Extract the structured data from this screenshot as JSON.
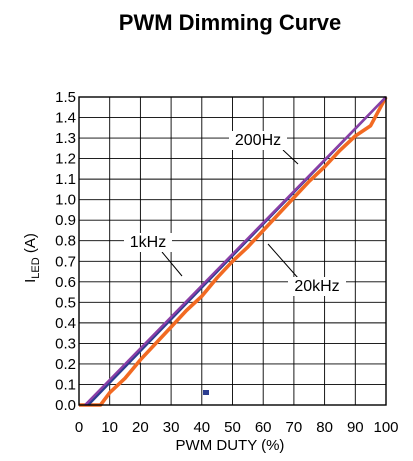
{
  "chart_data": {
    "type": "line",
    "title": "PWM Dimming Curve",
    "xlabel": "PWM DUTY (%)",
    "ylabel_main": "I",
    "ylabel_sub": "LED",
    "ylabel_unit": " (A)",
    "xlim": [
      0,
      100
    ],
    "ylim": [
      0,
      1.5
    ],
    "x_ticks": [
      0,
      10,
      20,
      30,
      40,
      50,
      60,
      70,
      80,
      90,
      100
    ],
    "x_tick_labels": [
      "0",
      "10",
      "20",
      "30",
      "40",
      "50",
      "60",
      "70",
      "80",
      "90",
      "100"
    ],
    "y_ticks": [
      0,
      0.1,
      0.2,
      0.3,
      0.4,
      0.5,
      0.6,
      0.7,
      0.8,
      0.9,
      1.0,
      1.1,
      1.2,
      1.3,
      1.4,
      1.5
    ],
    "y_tick_labels": [
      "0.0",
      "0.1",
      "0.2",
      "0.3",
      "0.4",
      "0.5",
      "0.6",
      "0.7",
      "0.8",
      "0.9",
      "1.0",
      "1.1",
      "1.2",
      "1.3",
      "1.4",
      "1.5"
    ],
    "grid": true,
    "series": [
      {
        "name": "200Hz",
        "color": "#2b3c8f",
        "points": [
          [
            3,
            0
          ],
          [
            100,
            1.5
          ]
        ]
      },
      {
        "name": "1kHz",
        "color": "#8a3fa6",
        "points": [
          [
            2,
            0
          ],
          [
            100,
            1.5
          ]
        ]
      },
      {
        "name": "20kHz",
        "color": "#f26a22",
        "points": [
          [
            0,
            0
          ],
          [
            7,
            0
          ],
          [
            10,
            0.06
          ],
          [
            15,
            0.13
          ],
          [
            20,
            0.22
          ],
          [
            25,
            0.3
          ],
          [
            30,
            0.38
          ],
          [
            35,
            0.46
          ],
          [
            40,
            0.53
          ],
          [
            45,
            0.62
          ],
          [
            50,
            0.7
          ],
          [
            55,
            0.77
          ],
          [
            60,
            0.85
          ],
          [
            65,
            0.93
          ],
          [
            70,
            1.01
          ],
          [
            75,
            1.09
          ],
          [
            80,
            1.16
          ],
          [
            85,
            1.24
          ],
          [
            90,
            1.31
          ],
          [
            95,
            1.36
          ],
          [
            100,
            1.5
          ]
        ]
      }
    ],
    "annotations": [
      {
        "text": "200Hz",
        "series": "200Hz"
      },
      {
        "text": "1kHz",
        "series": "1kHz"
      },
      {
        "text": "20kHz",
        "series": "20kHz"
      }
    ]
  }
}
